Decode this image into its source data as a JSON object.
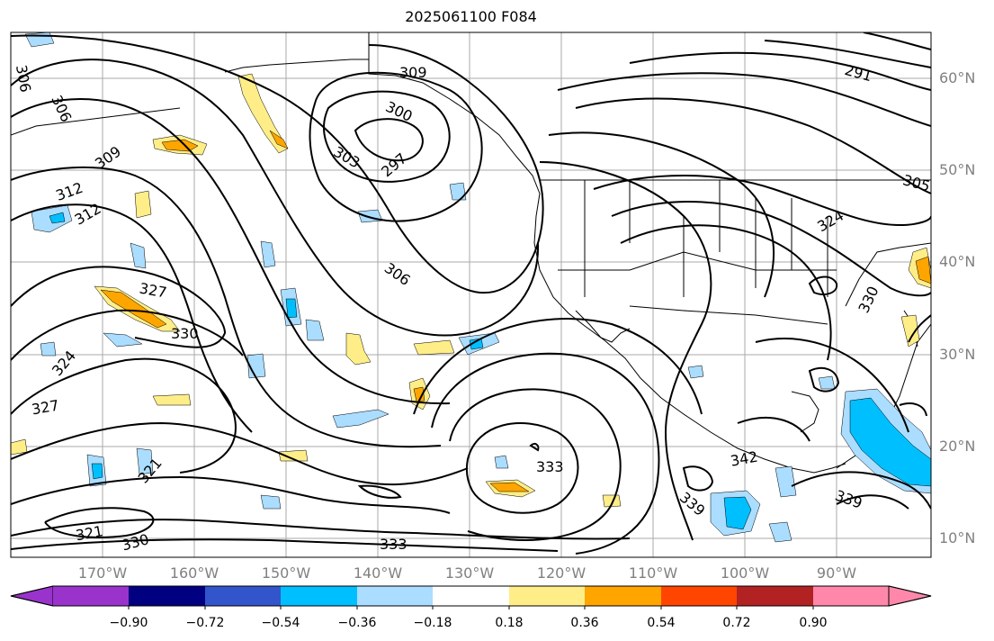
{
  "title": "2025061100 F084",
  "lat_labels": [
    "60°N",
    "50°N",
    "40°N",
    "30°N",
    "20°N",
    "10°N"
  ],
  "lon_labels": [
    "170°W",
    "160°W",
    "150°W",
    "140°W",
    "130°W",
    "120°W",
    "110°W",
    "100°W",
    "90°W"
  ],
  "contour_labels": [
    "309",
    "300",
    "297",
    "303",
    "306",
    "291",
    "305",
    "324",
    "306",
    "312",
    "312",
    "309",
    "306",
    "303",
    "327",
    "330",
    "324",
    "327",
    "321",
    "321",
    "330",
    "333",
    "333",
    "339",
    "339",
    "342",
    "330",
    "339"
  ],
  "colorbar": {
    "ticks": [
      "−0.90",
      "−0.72",
      "−0.54",
      "−0.36",
      "−0.18",
      "0.18",
      "0.36",
      "0.54",
      "0.72",
      "0.90"
    ],
    "colors": [
      "#9933cc",
      "#000080",
      "#3355cc",
      "#00bfff",
      "#aaddff",
      "#ffffff",
      "#ffee88",
      "#ffa500",
      "#ff4500",
      "#b22222",
      "#ff88aa"
    ]
  }
}
